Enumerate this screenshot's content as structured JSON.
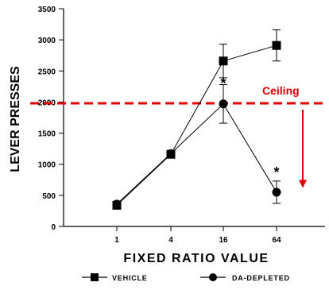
{
  "chart_data": {
    "type": "line",
    "xlabel": "FIXED RATIO VALUE",
    "ylabel": "LEVER PRESSES",
    "categories": [
      "1",
      "4",
      "16",
      "64"
    ],
    "yticks": [
      0,
      500,
      1000,
      1500,
      2000,
      2500,
      3000,
      3500
    ],
    "ylim": [
      0,
      3500
    ],
    "grid": false,
    "legend_position": "bottom",
    "series": [
      {
        "name": "VEHICLE",
        "marker": "square",
        "values": [
          340,
          1160,
          2660,
          2910
        ],
        "errors": [
          0,
          0,
          270,
          250
        ]
      },
      {
        "name": "DA-DEPLETED",
        "marker": "circle",
        "values": [
          360,
          1170,
          1970,
          550
        ],
        "errors": [
          0,
          0,
          310,
          180
        ]
      }
    ],
    "annotations": [
      {
        "label": "*",
        "category": "16",
        "y": 2350
      },
      {
        "label": "*",
        "category": "64",
        "y": 920
      }
    ],
    "ceiling": {
      "label": "Ceiling",
      "y": 1980,
      "color": "#e00000",
      "arrow_from": 1980,
      "arrow_to": 620
    }
  }
}
